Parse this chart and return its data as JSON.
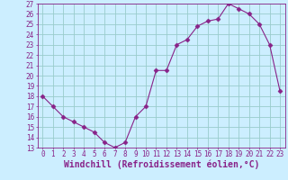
{
  "x": [
    0,
    1,
    2,
    3,
    4,
    5,
    6,
    7,
    8,
    9,
    10,
    11,
    12,
    13,
    14,
    15,
    16,
    17,
    18,
    19,
    20,
    21,
    22,
    23
  ],
  "y": [
    18,
    17,
    16,
    15.5,
    15,
    14.5,
    13.5,
    13,
    13.5,
    16,
    17,
    20.5,
    20.5,
    23,
    23.5,
    24.8,
    25.3,
    25.5,
    27,
    26.5,
    26,
    25,
    23,
    18.5
  ],
  "line_color": "#882288",
  "marker": "D",
  "marker_size": 2.5,
  "bg_color": "#cceeff",
  "grid_color": "#99cccc",
  "xlabel": "Windchill (Refroidissement éolien,°C)",
  "xlabel_fontsize": 7,
  "ylim": [
    13,
    27
  ],
  "xlim": [
    -0.5,
    23.5
  ],
  "yticks": [
    13,
    14,
    15,
    16,
    17,
    18,
    19,
    20,
    21,
    22,
    23,
    24,
    25,
    26,
    27
  ],
  "xticks": [
    0,
    1,
    2,
    3,
    4,
    5,
    6,
    7,
    8,
    9,
    10,
    11,
    12,
    13,
    14,
    15,
    16,
    17,
    18,
    19,
    20,
    21,
    22,
    23
  ],
  "tick_fontsize": 5.5,
  "tick_color": "#882288",
  "spine_color": "#882288"
}
